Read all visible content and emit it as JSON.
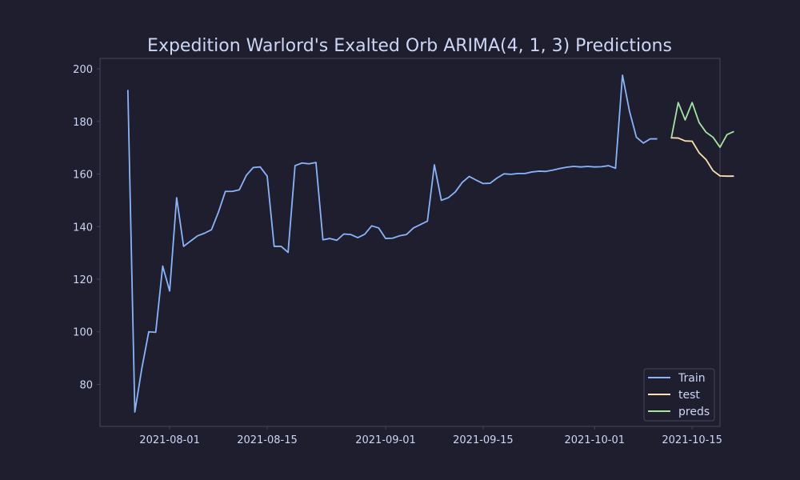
{
  "chart_data": {
    "type": "line",
    "title": "Expedition Warlord's Exalted Orb ARIMA(4, 1, 3) Predictions",
    "xlabel": "",
    "ylabel": "",
    "xlim": [
      "2021-07-22",
      "2021-10-19"
    ],
    "ylim": [
      64,
      204
    ],
    "x_ticks": [
      "2021-08-01",
      "2021-08-15",
      "2021-09-01",
      "2021-09-15",
      "2021-10-01",
      "2021-10-15"
    ],
    "y_ticks": [
      80,
      100,
      120,
      140,
      160,
      180,
      200
    ],
    "grid": false,
    "legend_position": "lower-right",
    "series": [
      {
        "name": "Train",
        "color": "#89b4fa",
        "points": [
          [
            "2021-07-26",
            192
          ],
          [
            "2021-07-27",
            69.5
          ],
          [
            "2021-07-28",
            86
          ],
          [
            "2021-07-29",
            100
          ],
          [
            "2021-07-30",
            99.8
          ],
          [
            "2021-07-31",
            125
          ],
          [
            "2021-08-01",
            115.5
          ],
          [
            "2021-08-02",
            151
          ],
          [
            "2021-08-03",
            132.5
          ],
          [
            "2021-08-04",
            134.5
          ],
          [
            "2021-08-05",
            136.5
          ],
          [
            "2021-08-06",
            137.5
          ],
          [
            "2021-08-07",
            138.8
          ],
          [
            "2021-08-08",
            145.5
          ],
          [
            "2021-08-09",
            153.4
          ],
          [
            "2021-08-10",
            153.4
          ],
          [
            "2021-08-11",
            154
          ],
          [
            "2021-08-12",
            159.5
          ],
          [
            "2021-08-13",
            162.5
          ],
          [
            "2021-08-14",
            162.7
          ],
          [
            "2021-08-15",
            159.2
          ],
          [
            "2021-08-16",
            132.5
          ],
          [
            "2021-08-17",
            132.5
          ],
          [
            "2021-08-18",
            130.2
          ],
          [
            "2021-08-19",
            163.2
          ],
          [
            "2021-08-20",
            164.2
          ],
          [
            "2021-08-21",
            163.9
          ],
          [
            "2021-08-22",
            164.4
          ],
          [
            "2021-08-23",
            135
          ],
          [
            "2021-08-24",
            135.5
          ],
          [
            "2021-08-25",
            134.8
          ],
          [
            "2021-08-26",
            137.2
          ],
          [
            "2021-08-27",
            137
          ],
          [
            "2021-08-28",
            135.8
          ],
          [
            "2021-08-29",
            137.1
          ],
          [
            "2021-08-30",
            140.3
          ],
          [
            "2021-08-31",
            139.5
          ],
          [
            "2021-09-01",
            135.5
          ],
          [
            "2021-09-02",
            135.6
          ],
          [
            "2021-09-03",
            136.5
          ],
          [
            "2021-09-04",
            137
          ],
          [
            "2021-09-05",
            139.5
          ],
          [
            "2021-09-06",
            140.8
          ],
          [
            "2021-09-07",
            142.1
          ],
          [
            "2021-09-08",
            163.5
          ],
          [
            "2021-09-09",
            150
          ],
          [
            "2021-09-10",
            151
          ],
          [
            "2021-09-11",
            153.2
          ],
          [
            "2021-09-12",
            156.8
          ],
          [
            "2021-09-13",
            159.1
          ],
          [
            "2021-09-14",
            157.7
          ],
          [
            "2021-09-15",
            156.4
          ],
          [
            "2021-09-16",
            156.5
          ],
          [
            "2021-09-17",
            158.5
          ],
          [
            "2021-09-18",
            160.1
          ],
          [
            "2021-09-19",
            159.9
          ],
          [
            "2021-09-20",
            160.2
          ],
          [
            "2021-09-21",
            160.2
          ],
          [
            "2021-09-22",
            160.8
          ],
          [
            "2021-09-23",
            161.1
          ],
          [
            "2021-09-24",
            161
          ],
          [
            "2021-09-25",
            161.5
          ],
          [
            "2021-09-26",
            162.1
          ],
          [
            "2021-09-27",
            162.6
          ],
          [
            "2021-09-28",
            162.9
          ],
          [
            "2021-09-29",
            162.7
          ],
          [
            "2021-09-30",
            162.9
          ],
          [
            "2021-10-01",
            162.7
          ],
          [
            "2021-10-02",
            162.8
          ],
          [
            "2021-10-03",
            163.2
          ],
          [
            "2021-10-04",
            162.2
          ],
          [
            "2021-10-05",
            197.6
          ],
          [
            "2021-10-06",
            184
          ],
          [
            "2021-10-07",
            174
          ],
          [
            "2021-10-08",
            171.8
          ],
          [
            "2021-10-09",
            173.4
          ],
          [
            "2021-10-10",
            173.4
          ],
          null,
          [
            "2021-10-11",
            173.4
          ]
        ]
      },
      {
        "name": "test",
        "color": "#f9e2af",
        "points": [
          [
            "2021-10-12",
            173.8
          ],
          [
            "2021-10-13",
            173.7
          ],
          [
            "2021-10-14",
            172.6
          ],
          [
            "2021-10-15",
            172.5
          ],
          [
            "2021-10-16",
            168.1
          ],
          [
            "2021-10-17",
            165.5
          ],
          [
            "2021-10-18",
            161.3
          ],
          [
            "2021-10-19",
            159.3
          ],
          [
            "2021-10-20",
            159.2
          ],
          [
            "2021-10-21",
            159.2
          ]
        ]
      },
      {
        "name": "preds",
        "color": "#a6e3a1",
        "points": [
          [
            "2021-10-12",
            173.5
          ],
          [
            "2021-10-13",
            187.2
          ],
          [
            "2021-10-14",
            180.6
          ],
          [
            "2021-10-15",
            187.2
          ],
          [
            "2021-10-16",
            179.6
          ],
          [
            "2021-10-17",
            175.9
          ],
          [
            "2021-10-18",
            174
          ],
          [
            "2021-10-19",
            170.2
          ],
          [
            "2021-10-20",
            175
          ],
          [
            "2021-10-21",
            176.2
          ]
        ]
      }
    ]
  },
  "colors": {
    "background": "#1e1e2e",
    "axes_edge": "#45475a",
    "text": "#cdd6f4"
  }
}
